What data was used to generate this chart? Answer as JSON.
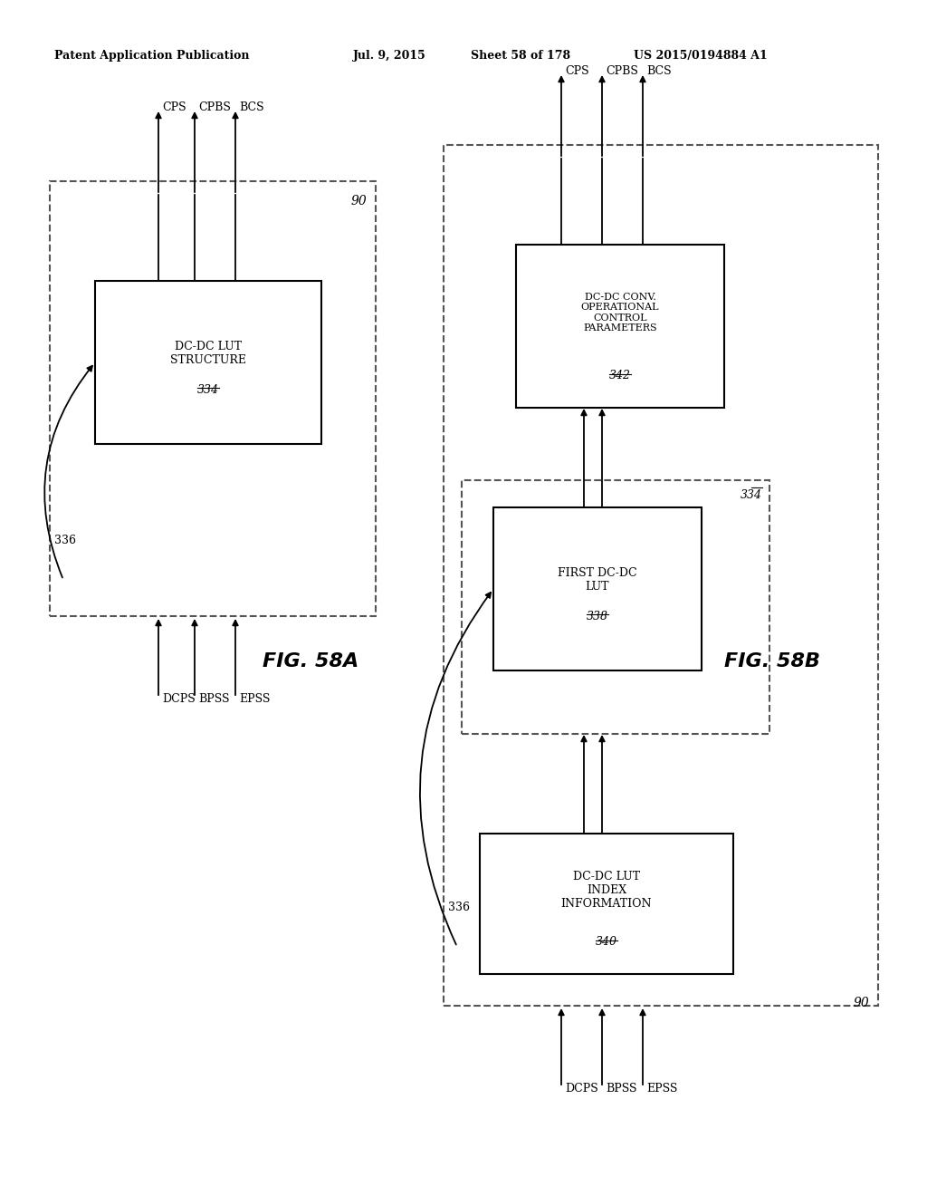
{
  "header_left": "Patent Application Publication",
  "header_mid": "Jul. 9, 2015",
  "header_right_sheet": "Sheet 58 of 178",
  "header_right_patent": "US 2015/0194884 A1",
  "fig_a_label": "FIG. 58A",
  "fig_b_label": "FIG. 58B",
  "fig_a": {
    "outer_box_label": "90",
    "inner_box_label": "DC-DC LUT\nSTRUCTURE\n334",
    "feedback_label": "336",
    "output_arrows": [
      "CPS",
      "CPBS",
      "BCS"
    ],
    "input_arrows": [
      "DCPS",
      "BPSS",
      "EPSS"
    ]
  },
  "fig_b": {
    "outer_box_label": "90",
    "lut_box_label": "FIRST DC-DC\nLUT\n338",
    "lut_outer_label": "334",
    "index_box_label": "DC-DC LUT\nINDEX\nINFORMATION\n340",
    "params_box_label": "DC-DC CONV.\nOPERATIONAL\nCONTROL\nPARAMETERS\n342",
    "feedback_label": "336",
    "output_arrows": [
      "CPS",
      "CPBS",
      "BCS"
    ],
    "input_arrows": [
      "DCPS",
      "BPSS",
      "EPSS"
    ]
  },
  "bg_color": "#ffffff",
  "line_color": "#000000",
  "text_color": "#000000",
  "dashed_color": "#555555"
}
